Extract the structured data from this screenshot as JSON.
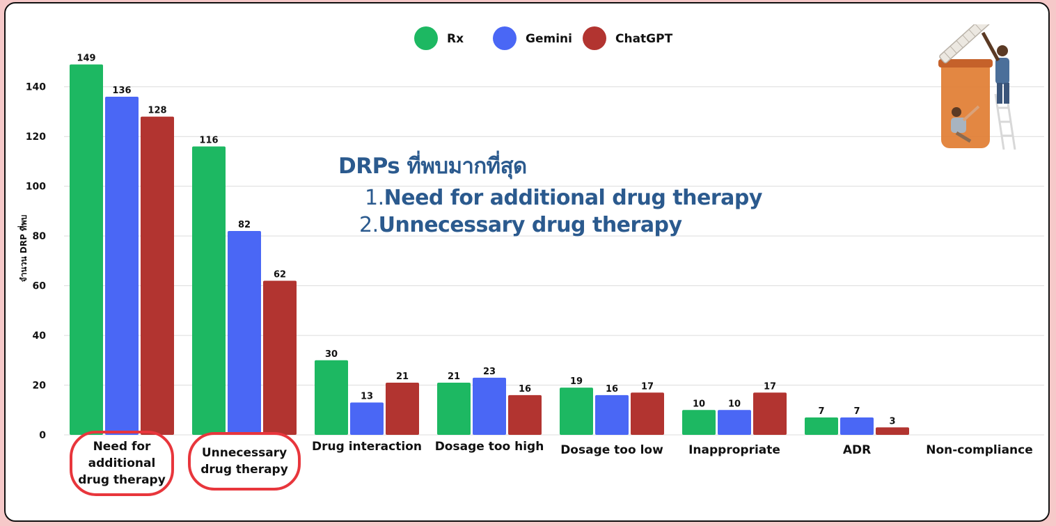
{
  "chart_data": {
    "type": "bar",
    "title": "",
    "xlabel": "",
    "ylabel": "จำนวน DRP ที่พบ",
    "ylim": [
      0,
      150
    ],
    "yticks": [
      0,
      20,
      40,
      60,
      80,
      100,
      120,
      140
    ],
    "grid": true,
    "legend_position": "top-center",
    "categories": [
      "Need for additional drug therapy",
      "Unnecessary drug therapy",
      "Drug interaction",
      "Dosage too high",
      "Dosage too low",
      "Inappropriate",
      "ADR",
      "Non-compliance"
    ],
    "series": [
      {
        "name": "Rx",
        "color": "#1db862",
        "values": [
          149,
          116,
          30,
          21,
          19,
          10,
          7,
          null
        ]
      },
      {
        "name": "Gemini",
        "color": "#4a67f5",
        "values": [
          136,
          82,
          13,
          23,
          16,
          10,
          7,
          null
        ]
      },
      {
        "name": "ChatGPT",
        "color": "#b23430",
        "values": [
          128,
          62,
          21,
          16,
          17,
          17,
          3,
          null
        ]
      }
    ],
    "highlighted_categories": [
      "Need for additional drug therapy",
      "Unnecessary drug therapy"
    ],
    "highlight_color": "#e8363c"
  },
  "annotation": {
    "title": "DRPs ที่พบมากที่สุด",
    "items": [
      {
        "num": "1.",
        "text": "Need for additional drug therapy"
      },
      {
        "num": "2.",
        "text": "Unnecessary drug therapy"
      }
    ]
  },
  "illustration": {
    "icon": "medicine-bottle-with-people-icon",
    "colors": {
      "bottle": "#e07a2e",
      "cap": "#e9e4dc"
    }
  }
}
